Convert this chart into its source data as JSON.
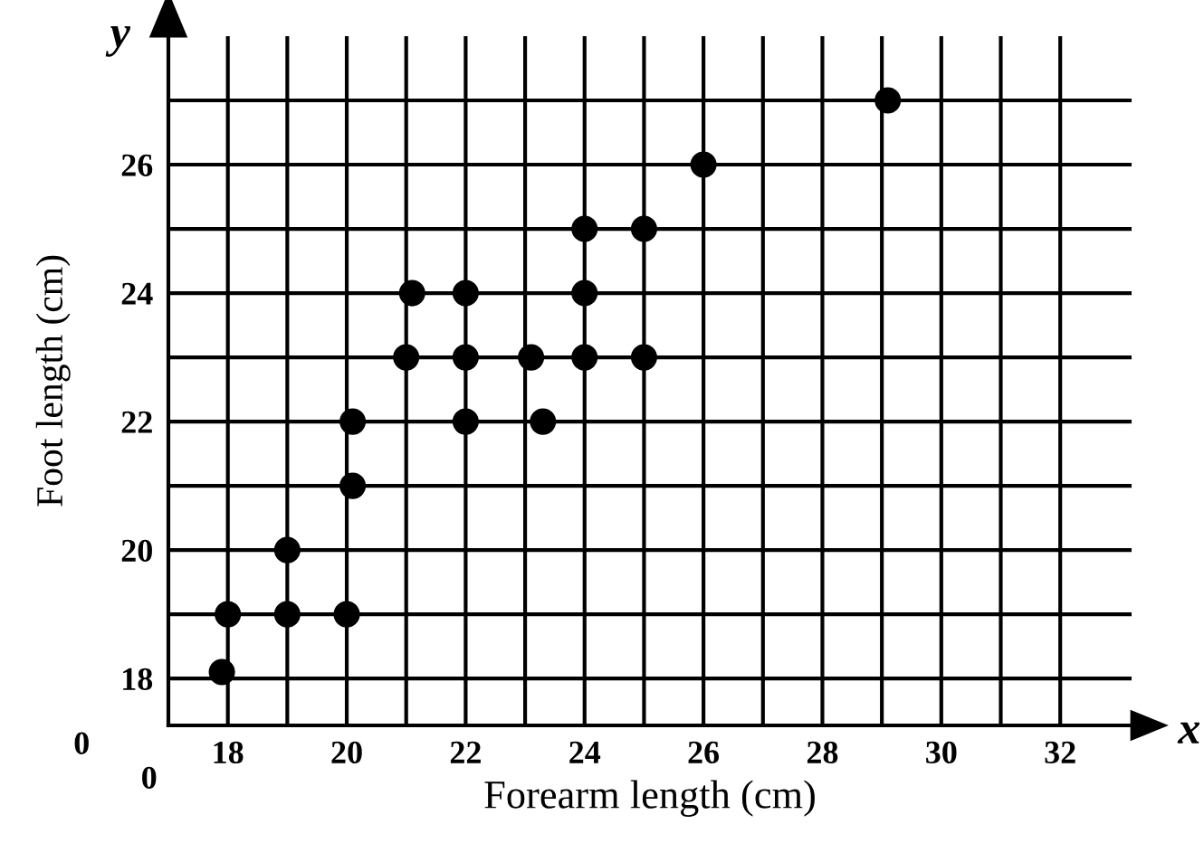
{
  "chart_data": {
    "type": "scatter",
    "xlabel": "Forearm length (cm)",
    "ylabel": "Foot length (cm)",
    "x": [
      17.9,
      18,
      19,
      19,
      20,
      20.1,
      20.1,
      21.1,
      21,
      22,
      22,
      22,
      23.1,
      23.3,
      24,
      24,
      24,
      25,
      25,
      26,
      29.1
    ],
    "series": [
      {
        "color": "#000000",
        "values": [
          18.1,
          19,
          20,
          19,
          19,
          21,
          22,
          24,
          23,
          24,
          23,
          22,
          23,
          22,
          25,
          24,
          23,
          25,
          23,
          26,
          27
        ]
      }
    ],
    "xlim": [
      17,
      33.2
    ],
    "ylim": [
      17.27,
      28
    ],
    "xticks": [
      18,
      {
        "value": 19,
        "label": null
      },
      20,
      {
        "value": 21,
        "label": null
      },
      22,
      {
        "value": 23,
        "label": null
      },
      24,
      {
        "value": 25,
        "label": null
      },
      26,
      {
        "value": 27,
        "label": null
      },
      28,
      {
        "value": 29,
        "label": null
      },
      30,
      {
        "value": 31,
        "label": null
      },
      32
    ],
    "yticks": [
      18,
      {
        "value": 19,
        "label": null
      },
      20,
      {
        "value": 21,
        "label": null
      },
      22,
      {
        "value": 23,
        "label": null
      },
      24,
      {
        "value": 25,
        "label": null
      },
      26,
      {
        "value": 27,
        "label": null
      }
    ],
    "grid": true,
    "marker": "circle",
    "annotations": [
      "y",
      "x",
      "0",
      "0"
    ]
  }
}
